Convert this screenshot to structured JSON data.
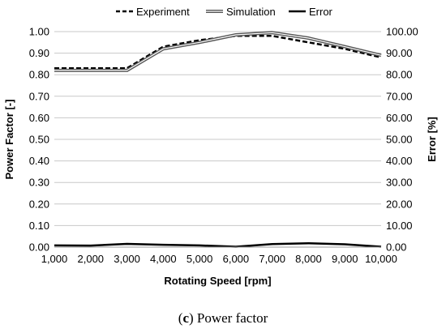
{
  "chart_data": {
    "type": "line",
    "xlabel": "Rotating Speed [rpm]",
    "ylabel_left": "Power Factor [-]",
    "ylabel_right": "Error [%]",
    "x": [
      1000,
      2000,
      3000,
      4000,
      5000,
      6000,
      7000,
      8000,
      9000,
      10000
    ],
    "x_tick_labels": [
      "1,000",
      "2,000",
      "3,000",
      "4,000",
      "5,000",
      "6,000",
      "7,000",
      "8,000",
      "9,000",
      "10,000"
    ],
    "ylim_left": [
      0,
      1
    ],
    "ylim_right": [
      0,
      100
    ],
    "y_ticks_left": [
      "0.00",
      "0.10",
      "0.20",
      "0.30",
      "0.40",
      "0.50",
      "0.60",
      "0.70",
      "0.80",
      "0.90",
      "1.00"
    ],
    "y_ticks_right": [
      "0.00",
      "10.00",
      "20.00",
      "30.00",
      "40.00",
      "50.00",
      "60.00",
      "70.00",
      "80.00",
      "90.00",
      "100.00"
    ],
    "grid": true,
    "legend_position": "top",
    "series": [
      {
        "name": "Experiment",
        "axis": "left",
        "style": "dashed",
        "color": "#000000",
        "values": [
          0.83,
          0.83,
          0.83,
          0.93,
          0.96,
          0.98,
          0.98,
          0.95,
          0.92,
          0.88
        ]
      },
      {
        "name": "Simulation",
        "axis": "left",
        "style": "double",
        "color": "#555555",
        "values": [
          0.82,
          0.82,
          0.82,
          0.92,
          0.95,
          0.985,
          0.995,
          0.97,
          0.93,
          0.89
        ]
      },
      {
        "name": "Error",
        "axis": "right",
        "style": "solid",
        "color": "#000000",
        "values": [
          0.8,
          0.7,
          1.5,
          1.1,
          0.8,
          0.2,
          1.4,
          1.8,
          1.3,
          0.2
        ]
      }
    ]
  },
  "caption": {
    "label": "c",
    "text": " Power factor"
  }
}
